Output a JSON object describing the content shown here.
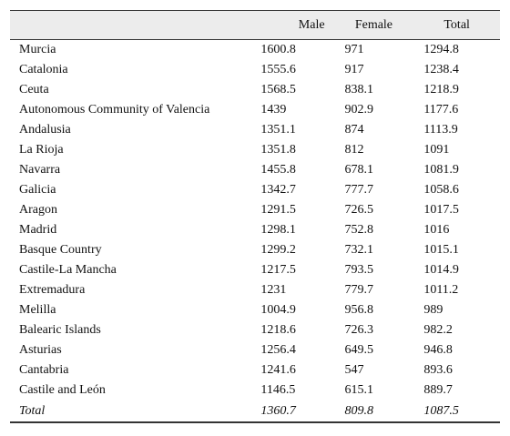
{
  "columns": {
    "name": "",
    "male": "Male",
    "female": "Female",
    "total": "Total"
  },
  "rows": [
    {
      "name": "Murcia",
      "male": "1600.8",
      "female": "971",
      "total": "1294.8"
    },
    {
      "name": "Catalonia",
      "male": "1555.6",
      "female": "917",
      "total": "1238.4"
    },
    {
      "name": "Ceuta",
      "male": "1568.5",
      "female": "838.1",
      "total": "1218.9"
    },
    {
      "name": "Autonomous Community of Valencia",
      "male": "1439",
      "female": "902.9",
      "total": "1177.6"
    },
    {
      "name": "Andalusia",
      "male": "1351.1",
      "female": "874",
      "total": "1113.9"
    },
    {
      "name": "La Rioja",
      "male": "1351.8",
      "female": "812",
      "total": "1091"
    },
    {
      "name": "Navarra",
      "male": "1455.8",
      "female": "678.1",
      "total": "1081.9"
    },
    {
      "name": "Galicia",
      "male": "1342.7",
      "female": "777.7",
      "total": "1058.6"
    },
    {
      "name": "Aragon",
      "male": "1291.5",
      "female": "726.5",
      "total": "1017.5"
    },
    {
      "name": "Madrid",
      "male": "1298.1",
      "female": "752.8",
      "total": "1016"
    },
    {
      "name": "Basque Country",
      "male": "1299.2",
      "female": "732.1",
      "total": "1015.1"
    },
    {
      "name": "Castile-La Mancha",
      "male": "1217.5",
      "female": "793.5",
      "total": "1014.9"
    },
    {
      "name": "Extremadura",
      "male": "1231",
      "female": "779.7",
      "total": "1011.2"
    },
    {
      "name": "Melilla",
      "male": "1004.9",
      "female": "956.8",
      "total": "989"
    },
    {
      "name": "Balearic Islands",
      "male": "1218.6",
      "female": "726.3",
      "total": "982.2"
    },
    {
      "name": "Asturias",
      "male": "1256.4",
      "female": "649.5",
      "total": "946.8"
    },
    {
      "name": "Cantabria",
      "male": "1241.6",
      "female": "547",
      "total": "893.6"
    },
    {
      "name": "Castile and León",
      "male": "1146.5",
      "female": "615.1",
      "total": "889.7"
    }
  ],
  "total_row": {
    "name": "Total",
    "male": "1360.7",
    "female": "809.8",
    "total": "1087.5"
  },
  "colors": {
    "header_bg": "#ececec",
    "rule": "#333333",
    "text": "#111111"
  }
}
